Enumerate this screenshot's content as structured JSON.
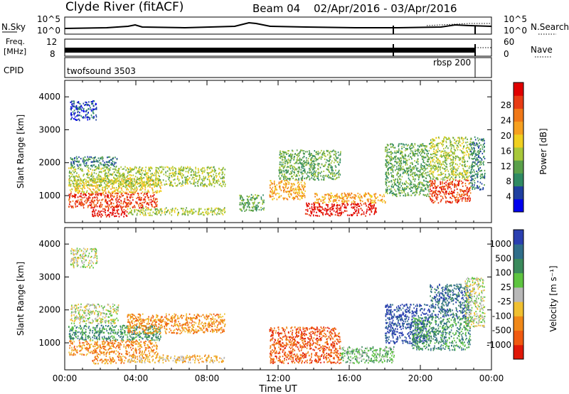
{
  "header": {
    "title": "Clyde River (fitACF)",
    "beam": "Beam 04",
    "date_range": "02/Apr/2016 - 03/Apr/2016"
  },
  "nsky_panel": {
    "left_label": "N.Sky",
    "left_top_tick": "10^5",
    "left_bottom_tick": "10^0",
    "right_label": "N.Search",
    "right_top_tick": "10^5",
    "right_bottom_tick": "10^0"
  },
  "freq_panel": {
    "left_label_line1": "Freq.",
    "left_label_line2": "[MHz]",
    "left_top_tick": "12",
    "left_bottom_tick": "8",
    "right_label": "Nave",
    "right_top_tick": "60",
    "right_bottom_tick": "0"
  },
  "cpid_panel": {
    "label": "CPID",
    "segments": [
      "twofsound 3503",
      "rbsp 200"
    ]
  },
  "chart_data": [
    {
      "type": "heatmap",
      "parameter": "Power",
      "ylabel": "Slant Range [km]",
      "yticks": [
        "1000",
        "2000",
        "3000",
        "4000"
      ],
      "ylim": [
        180,
        4500
      ],
      "x_unit": "hours UT",
      "xlim": [
        0,
        24
      ],
      "colorbar": {
        "label": "Power [dB]",
        "ticks": [
          "4",
          "8",
          "12",
          "16",
          "20",
          "24",
          "28"
        ],
        "colors": [
          "#0000ee",
          "#1e3fa0",
          "#2f8a63",
          "#5aa04a",
          "#a8c83a",
          "#f0d020",
          "#f6a020",
          "#f07818",
          "#e83c14",
          "#e00000"
        ]
      },
      "regions": [
        {
          "t0": 0.2,
          "t1": 5.2,
          "r0": 650,
          "r1": 1100,
          "level": 8
        },
        {
          "t0": 0.2,
          "t1": 5.4,
          "r0": 1100,
          "r1": 1550,
          "level": 5
        },
        {
          "t0": 0.2,
          "t1": 9.0,
          "r0": 1300,
          "r1": 1900,
          "level": 4
        },
        {
          "t0": 0.3,
          "t1": 3.0,
          "r0": 1900,
          "r1": 2200,
          "level": 2
        },
        {
          "t0": 1.5,
          "t1": 3.5,
          "r0": 380,
          "r1": 620,
          "level": 9
        },
        {
          "t0": 3.5,
          "t1": 9.0,
          "r0": 420,
          "r1": 650,
          "level": 4
        },
        {
          "t0": 0.3,
          "t1": 1.8,
          "r0": 3300,
          "r1": 3900,
          "level": 1
        },
        {
          "t0": 9.8,
          "t1": 11.2,
          "r0": 550,
          "r1": 1050,
          "level": 3
        },
        {
          "t0": 11.5,
          "t1": 13.5,
          "r0": 900,
          "r1": 1500,
          "level": 6
        },
        {
          "t0": 12.0,
          "t1": 15.5,
          "r0": 1500,
          "r1": 2400,
          "level": 3
        },
        {
          "t0": 13.5,
          "t1": 17.5,
          "r0": 400,
          "r1": 800,
          "level": 9
        },
        {
          "t0": 14.0,
          "t1": 18.0,
          "r0": 800,
          "r1": 1100,
          "level": 6
        },
        {
          "t0": 18.0,
          "t1": 20.5,
          "r0": 1000,
          "r1": 2600,
          "level": 3
        },
        {
          "t0": 20.5,
          "t1": 22.8,
          "r0": 800,
          "r1": 1500,
          "level": 8
        },
        {
          "t0": 20.5,
          "t1": 22.8,
          "r0": 1500,
          "r1": 2800,
          "level": 4
        },
        {
          "t0": 22.8,
          "t1": 23.6,
          "r0": 1200,
          "r1": 2800,
          "level": 2
        }
      ]
    },
    {
      "type": "heatmap",
      "parameter": "Velocity",
      "ylabel": "Slant Range [km]",
      "yticks": [
        "1000",
        "2000",
        "3000",
        "4000"
      ],
      "ylim": [
        180,
        4500
      ],
      "x_unit": "hours UT",
      "xlim": [
        0,
        24
      ],
      "xlabel": "Time UT",
      "xticks": [
        "00:00",
        "04:00",
        "08:00",
        "12:00",
        "16:00",
        "20:00",
        "00:00"
      ],
      "colorbar": {
        "label": "Velocity [m s⁻¹]",
        "ticks": [
          "1000",
          "500",
          "100",
          "25",
          "-25",
          "-100",
          "-500",
          "-1000"
        ],
        "colors": [
          "#2a3fb0",
          "#306e8a",
          "#3b8a5c",
          "#5ec440",
          "#b8b8b8",
          "#f0c030",
          "#f08818",
          "#f05a10",
          "#e01808"
        ]
      },
      "regions": [
        {
          "t0": 0.2,
          "t1": 5.2,
          "r0": 650,
          "r1": 1100,
          "level": 6
        },
        {
          "t0": 0.2,
          "t1": 5.4,
          "r0": 1100,
          "r1": 1550,
          "level": 2
        },
        {
          "t0": 3.5,
          "t1": 9.0,
          "r0": 1300,
          "r1": 1900,
          "level": 6
        },
        {
          "t0": 0.3,
          "t1": 3.0,
          "r0": 1600,
          "r1": 2200,
          "level": 4
        },
        {
          "t0": 1.5,
          "t1": 3.5,
          "r0": 380,
          "r1": 620,
          "level": 6
        },
        {
          "t0": 3.5,
          "t1": 9.0,
          "r0": 420,
          "r1": 650,
          "level": 5
        },
        {
          "t0": 0.3,
          "t1": 1.8,
          "r0": 3300,
          "r1": 3900,
          "level": 4
        },
        {
          "t0": 11.5,
          "t1": 15.5,
          "r0": 400,
          "r1": 1500,
          "level": 7
        },
        {
          "t0": 15.5,
          "t1": 18.5,
          "r0": 400,
          "r1": 900,
          "level": 3
        },
        {
          "t0": 18.0,
          "t1": 20.5,
          "r0": 1000,
          "r1": 2200,
          "level": 0
        },
        {
          "t0": 19.5,
          "t1": 22.8,
          "r0": 800,
          "r1": 1800,
          "level": 2
        },
        {
          "t0": 20.5,
          "t1": 22.8,
          "r0": 1800,
          "r1": 2800,
          "level": 1
        },
        {
          "t0": 22.5,
          "t1": 23.6,
          "r0": 1500,
          "r1": 3000,
          "level": 4
        }
      ]
    }
  ]
}
